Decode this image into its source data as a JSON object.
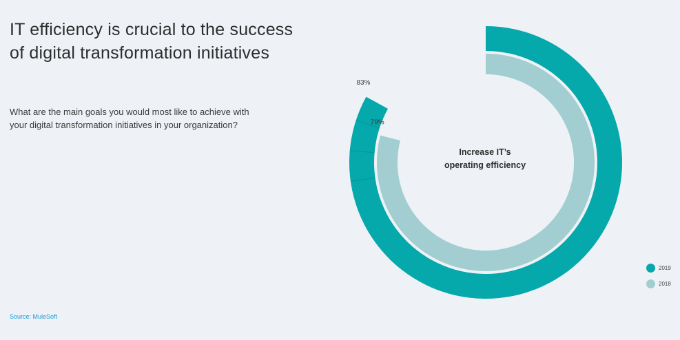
{
  "title": {
    "line1": "IT efficiency is crucial to the success",
    "line2": "of digital transformation initiatives"
  },
  "question": {
    "line1": "What are the main goals you would most like to achieve with",
    "line2": "your digital transformation initiatives in your organization?"
  },
  "source": "Source: MuleSoft",
  "colors": {
    "series_2019": "#05a8ab",
    "series_2018": "#a3ced1",
    "ring_separator": "#eef2f6",
    "background": "#eef2f6"
  },
  "chart_data": {
    "type": "pie",
    "subtype": "radial-bar",
    "center_label": {
      "line1": "Increase IT’s",
      "line2": "operating efficiency"
    },
    "series": [
      {
        "name": "2019",
        "value": 83,
        "label": "83%"
      },
      {
        "name": "2018",
        "value": 79,
        "label": "79%"
      }
    ],
    "legend": {
      "position": "bottom-right",
      "entries": [
        "2019",
        "2018"
      ]
    }
  }
}
